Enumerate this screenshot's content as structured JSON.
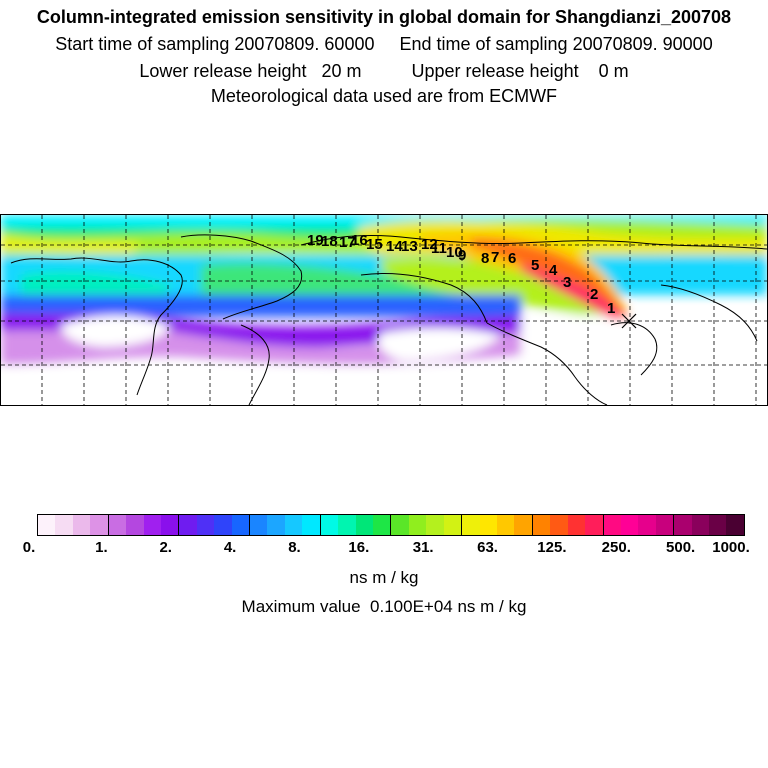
{
  "header": {
    "title": "Column-integrated emission sensitivity in global domain for Shangdianzi_200708",
    "sampling_line": "Start time of sampling 20070809. 60000     End time of sampling 20070809. 90000",
    "release_line": "Lower release height   20 m          Upper release height    0 m",
    "met_line": "Meteorological data used are from ECMWF"
  },
  "map": {
    "station": "Shangdianzi",
    "trajectory_labels": [
      "1",
      "2",
      "3",
      "4",
      "5",
      "6",
      "7",
      "8",
      "9",
      "10",
      "11",
      "12",
      "13",
      "14",
      "15",
      "16",
      "17",
      "18",
      "19"
    ]
  },
  "legend": {
    "colors": [
      "#fdf2fb",
      "#f6dcf3",
      "#ebb9eb",
      "#dd92e6",
      "#c96de3",
      "#b447e0",
      "#a020ef",
      "#8a10ec",
      "#6f1cf0",
      "#4f30f6",
      "#2f44fa",
      "#1766ff",
      "#1a85ff",
      "#1ca6ff",
      "#16c8ff",
      "#00e8ff",
      "#00fae6",
      "#00f5b0",
      "#00e678",
      "#1ee646",
      "#5ae628",
      "#90ee1e",
      "#b4f01e",
      "#d2f214",
      "#eef00a",
      "#ffe600",
      "#ffc800",
      "#ffa400",
      "#ff8200",
      "#ff5a14",
      "#ff3232",
      "#ff1e5a",
      "#ff0a82",
      "#ff0096",
      "#e6008c",
      "#c8007d",
      "#aa006e",
      "#8a005c",
      "#6a0046",
      "#4a0032"
    ],
    "tick_labels": [
      "0.",
      "1.",
      "2.",
      "4.",
      "8.",
      "16.",
      "31.",
      "63.",
      "125.",
      "250.",
      "500.",
      "1000."
    ],
    "units": "ns m / kg",
    "maximum_text": "Maximum value  0.100E+04 ns m / kg"
  }
}
